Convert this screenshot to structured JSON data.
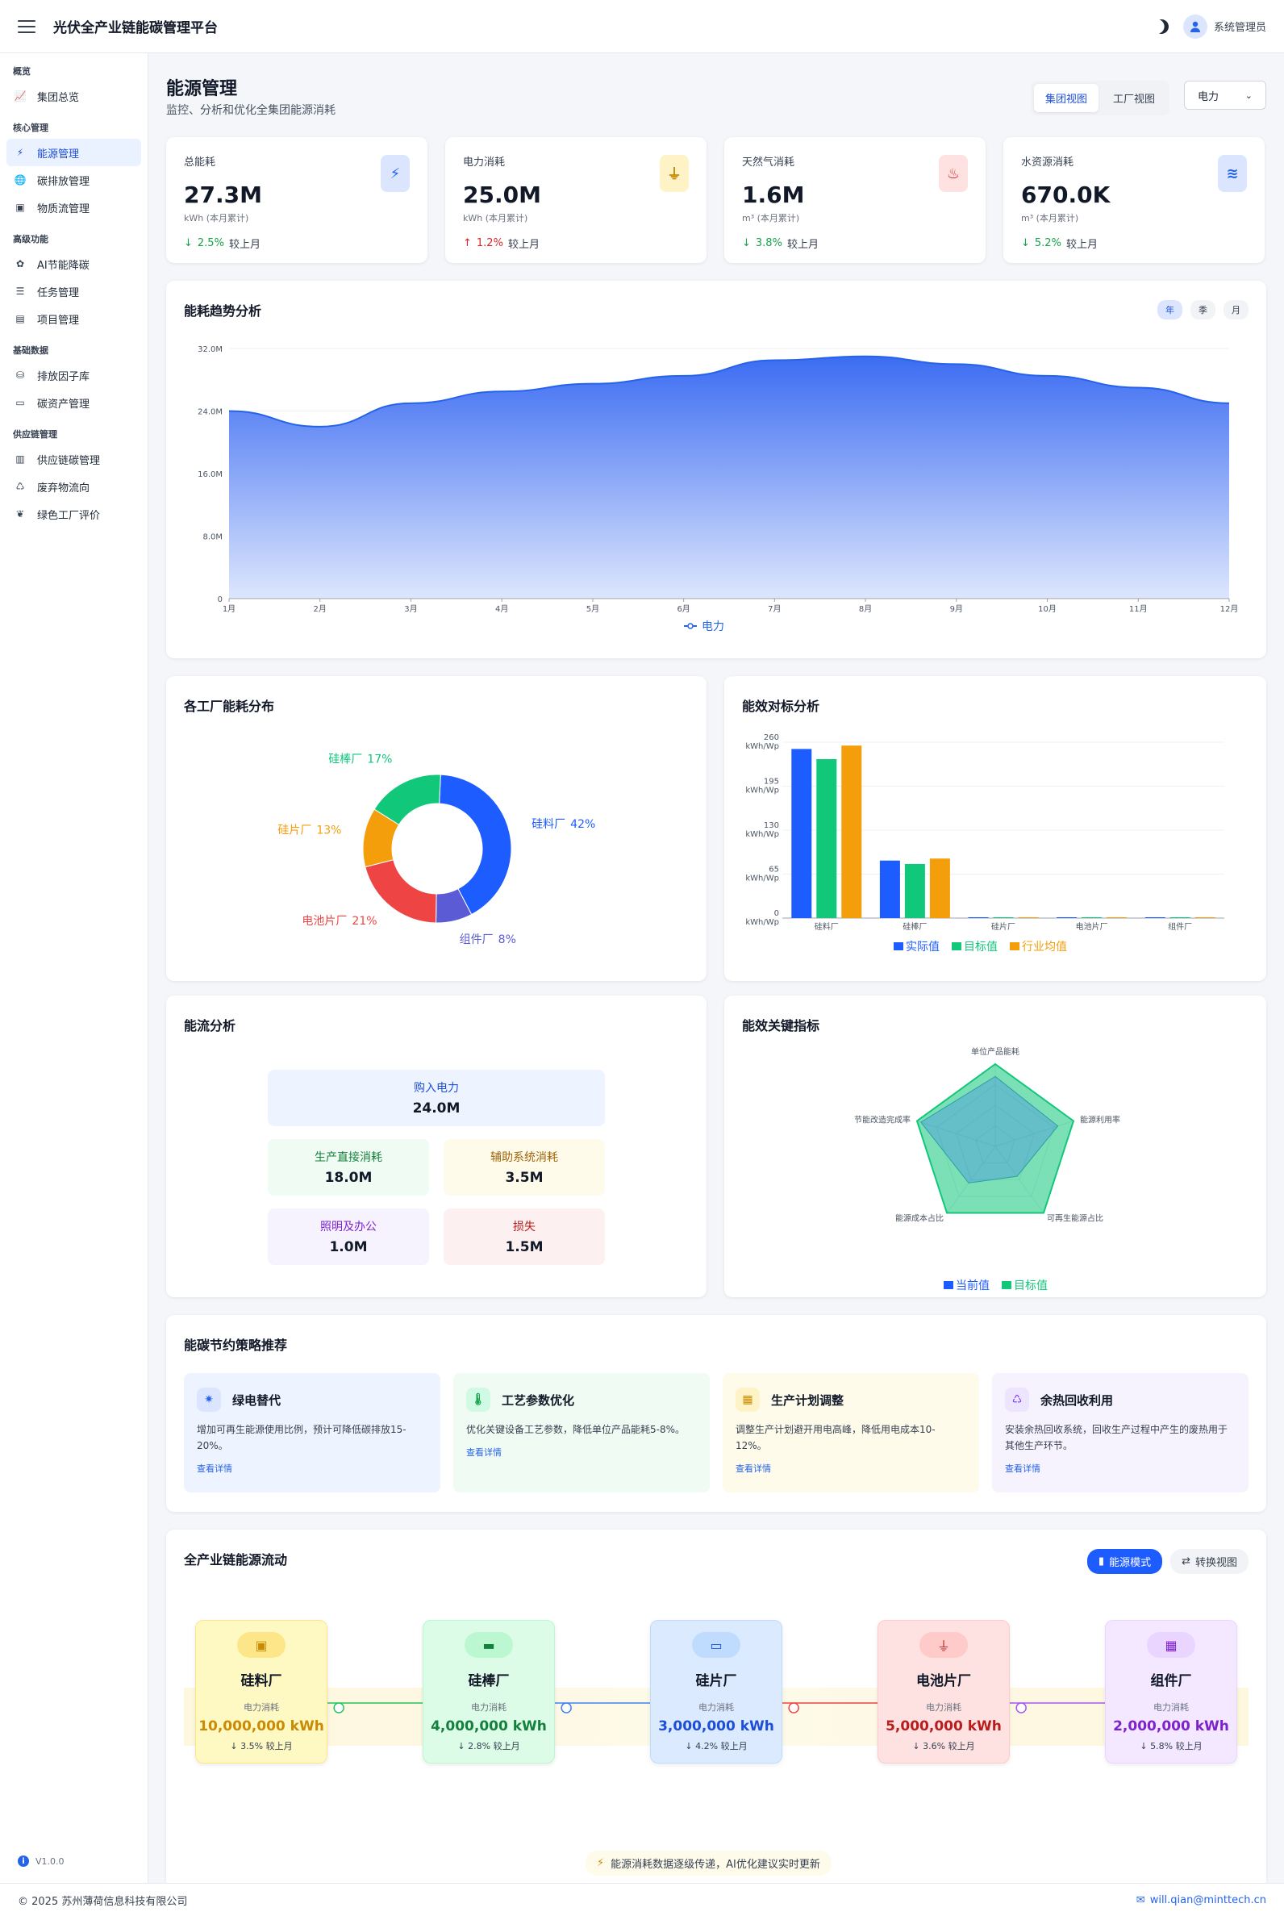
{
  "app": {
    "title": "光伏全产业链能碳管理平台",
    "user": "系统管理员"
  },
  "sidebar": {
    "groups": [
      {
        "label": "概览",
        "items": [
          {
            "label": "集团总览",
            "icon": "chart-line-icon"
          }
        ]
      },
      {
        "label": "核心管理",
        "items": [
          {
            "label": "能源管理",
            "icon": "bolt-icon",
            "active": true
          },
          {
            "label": "碳排放管理",
            "icon": "globe-icon"
          },
          {
            "label": "物质流管理",
            "icon": "cubes-icon"
          }
        ]
      },
      {
        "label": "高级功能",
        "items": [
          {
            "label": "AI节能降碳",
            "icon": "brain-icon"
          },
          {
            "label": "任务管理",
            "icon": "list-icon"
          },
          {
            "label": "项目管理",
            "icon": "file-icon"
          }
        ]
      },
      {
        "label": "基础数据",
        "items": [
          {
            "label": "排放因子库",
            "icon": "database-icon"
          },
          {
            "label": "碳资产管理",
            "icon": "card-icon"
          }
        ]
      },
      {
        "label": "供应链管理",
        "items": [
          {
            "label": "供应链碳管理",
            "icon": "building-icon"
          },
          {
            "label": "废弃物流向",
            "icon": "recycle-icon"
          },
          {
            "label": "绿色工厂评价",
            "icon": "leaf-icon"
          }
        ]
      }
    ],
    "version": "V1.0.0"
  },
  "header": {
    "title": "能源管理",
    "subtitle": "监控、分析和优化全集团能源消耗",
    "views": [
      "集团视图",
      "工厂视图"
    ],
    "select_value": "电力"
  },
  "kpis": [
    {
      "label": "总能耗",
      "value": "27.3M",
      "unit": "kWh (本月累计)",
      "change": "2.5%",
      "dir": "down",
      "compare": "较上月",
      "icon": "bolt-icon",
      "color": "#2563eb",
      "bg": "#dbe6fe"
    },
    {
      "label": "电力消耗",
      "value": "25.0M",
      "unit": "kWh (本月累计)",
      "change": "1.2%",
      "dir": "up",
      "compare": "较上月",
      "icon": "plug-icon",
      "color": "#ca8a04",
      "bg": "#fef3c7"
    },
    {
      "label": "天然气消耗",
      "value": "1.6M",
      "unit": "m³ (本月累计)",
      "change": "3.8%",
      "dir": "down",
      "compare": "较上月",
      "icon": "flame-icon",
      "color": "#dc2626",
      "bg": "#fee2e2"
    },
    {
      "label": "水资源消耗",
      "value": "670.0K",
      "unit": "m³ (本月累计)",
      "change": "5.2%",
      "dir": "down",
      "compare": "较上月",
      "icon": "water-icon",
      "color": "#2563eb",
      "bg": "#dbe6fe"
    }
  ],
  "trend": {
    "title": "能耗趋势分析",
    "periods": [
      "年",
      "季",
      "月"
    ]
  },
  "distribution": {
    "title": "各工厂能耗分布"
  },
  "benchmark": {
    "title": "能效对标分析"
  },
  "flow": {
    "title": "能流分析",
    "boxes": [
      {
        "label": "购入电力",
        "value": "24.0M"
      },
      {
        "label": "生产直接消耗",
        "value": "18.0M"
      },
      {
        "label": "辅助系统消耗",
        "value": "3.5M"
      },
      {
        "label": "照明及办公",
        "value": "1.0M"
      },
      {
        "label": "损失",
        "value": "1.5M"
      }
    ]
  },
  "kpi_radar": {
    "title": "能效关键指标"
  },
  "strategies": {
    "title": "能碳节约策略推荐",
    "items": [
      {
        "title": "绿电替代",
        "desc": "增加可再生能源使用比例，预计可降低碳排放15-20%。",
        "link": "查看详情",
        "icon": "sun-icon",
        "bg": "#eef4ff",
        "ibg": "#dbe6fe",
        "ic": "#2563eb"
      },
      {
        "title": "工艺参数优化",
        "desc": "优化关键设备工艺参数，降低单位产品能耗5-8%。",
        "link": "查看详情",
        "icon": "thermometer-icon",
        "bg": "#effbf3",
        "ibg": "#d1fae5",
        "ic": "#16a34a"
      },
      {
        "title": "生产计划调整",
        "desc": "调整生产计划避开用电高峰，降低用电成本10-12%。",
        "link": "查看详情",
        "icon": "calendar-icon",
        "bg": "#fefbeb",
        "ibg": "#fef3c7",
        "ic": "#ca8a04"
      },
      {
        "title": "余热回收利用",
        "desc": "安装余热回收系统，回收生产过程中产生的废热用于其他生产环节。",
        "link": "查看详情",
        "icon": "recycle-icon",
        "bg": "#f7f3fe",
        "ibg": "#ede4fd",
        "ic": "#7c3aed"
      }
    ]
  },
  "chain": {
    "title": "全产业链能源流动",
    "btn_mode": "能源模式",
    "btn_switch": "转换视图",
    "nodes": [
      {
        "title": "硅料厂",
        "label": "电力消耗",
        "value": "10,000,000 kWh",
        "change": "↓ 3.5% 较上月",
        "color": "#ca8a04",
        "bg": "#fef9c3",
        "border": "#fde68a",
        "icon": "chip-icon"
      },
      {
        "title": "硅棒厂",
        "label": "电力消耗",
        "value": "4,000,000 kWh",
        "change": "↓ 2.8% 较上月",
        "color": "#15803d",
        "bg": "#dcfce7",
        "border": "#bbf7d0",
        "icon": "rod-icon"
      },
      {
        "title": "硅片厂",
        "label": "电力消耗",
        "value": "3,000,000 kWh",
        "change": "↓ 4.2% 较上月",
        "color": "#1d4ed8",
        "bg": "#dbeafe",
        "border": "#bfdbfe",
        "icon": "wafer-icon"
      },
      {
        "title": "电池片厂",
        "label": "电力消耗",
        "value": "5,000,000 kWh",
        "change": "↓ 3.6% 较上月",
        "color": "#b91c1c",
        "bg": "#fee2e2",
        "border": "#fecaca",
        "icon": "plug-icon"
      },
      {
        "title": "组件厂",
        "label": "电力消耗",
        "value": "2,000,000 kWh",
        "change": "↓ 5.8% 较上月",
        "color": "#7e22ce",
        "bg": "#f3e8ff",
        "border": "#e9d5ff",
        "icon": "solar-panel-icon"
      }
    ],
    "note": "能源消耗数据逐级传递，AI优化建议实时更新"
  },
  "footer": {
    "copyright": "© 2025 苏州薄荷信息科技有限公司",
    "email": "will.qian@minttech.cn"
  },
  "chart_data": [
    {
      "type": "area",
      "x": [
        "1月",
        "2月",
        "3月",
        "4月",
        "5月",
        "6月",
        "7月",
        "8月",
        "9月",
        "10月",
        "11月",
        "12月"
      ],
      "series": [
        {
          "name": "电力",
          "values": [
            24.0,
            22.0,
            25.0,
            26.5,
            27.5,
            28.5,
            30.5,
            31.0,
            30.0,
            28.5,
            27.0,
            25.0
          ],
          "color": "#2563eb"
        }
      ],
      "yticks": [
        "0",
        "8.0M",
        "16.0M",
        "24.0M",
        "32.0M"
      ],
      "ylim": [
        0,
        32
      ]
    },
    {
      "type": "pie",
      "labels": [
        "硅料厂",
        "组件厂",
        "电池片厂",
        "硅片厂",
        "硅棒厂"
      ],
      "values": [
        42,
        8,
        21,
        13,
        17
      ],
      "colors": [
        "#1d5cff",
        "#5b5bd6",
        "#ef4444",
        "#f59e0b",
        "#10c77a"
      ]
    },
    {
      "type": "bar",
      "categories": [
        "硅料厂",
        "硅棒厂",
        "硅片厂",
        "电池片厂",
        "组件厂"
      ],
      "series": [
        {
          "name": "实际值",
          "values": [
            250,
            85,
            1,
            1,
            0.5
          ],
          "color": "#1d5cff"
        },
        {
          "name": "目标值",
          "values": [
            235,
            80,
            1,
            1,
            0.5
          ],
          "color": "#10c77a"
        },
        {
          "name": "行业均值",
          "values": [
            255,
            88,
            1,
            1,
            0.5
          ],
          "color": "#f59e0b"
        }
      ],
      "yticks": [
        "0 kWh/Wp",
        "65 kWh/Wp",
        "130 kWh/Wp",
        "195 kWh/Wp",
        "260 kWh/Wp"
      ],
      "ylim": [
        0,
        260
      ]
    },
    {
      "type": "radar",
      "axes": [
        "单位产品能耗",
        "能源利用率",
        "可再生能源占比",
        "能源成本占比",
        "节能改造完成率"
      ],
      "series": [
        {
          "name": "当前值",
          "values": [
            0.85,
            0.8,
            0.45,
            0.55,
            0.95
          ],
          "color": "#1d5cff"
        },
        {
          "name": "目标值",
          "values": [
            1.0,
            1.0,
            1.0,
            1.0,
            1.0
          ],
          "color": "#10c77a"
        }
      ]
    }
  ]
}
